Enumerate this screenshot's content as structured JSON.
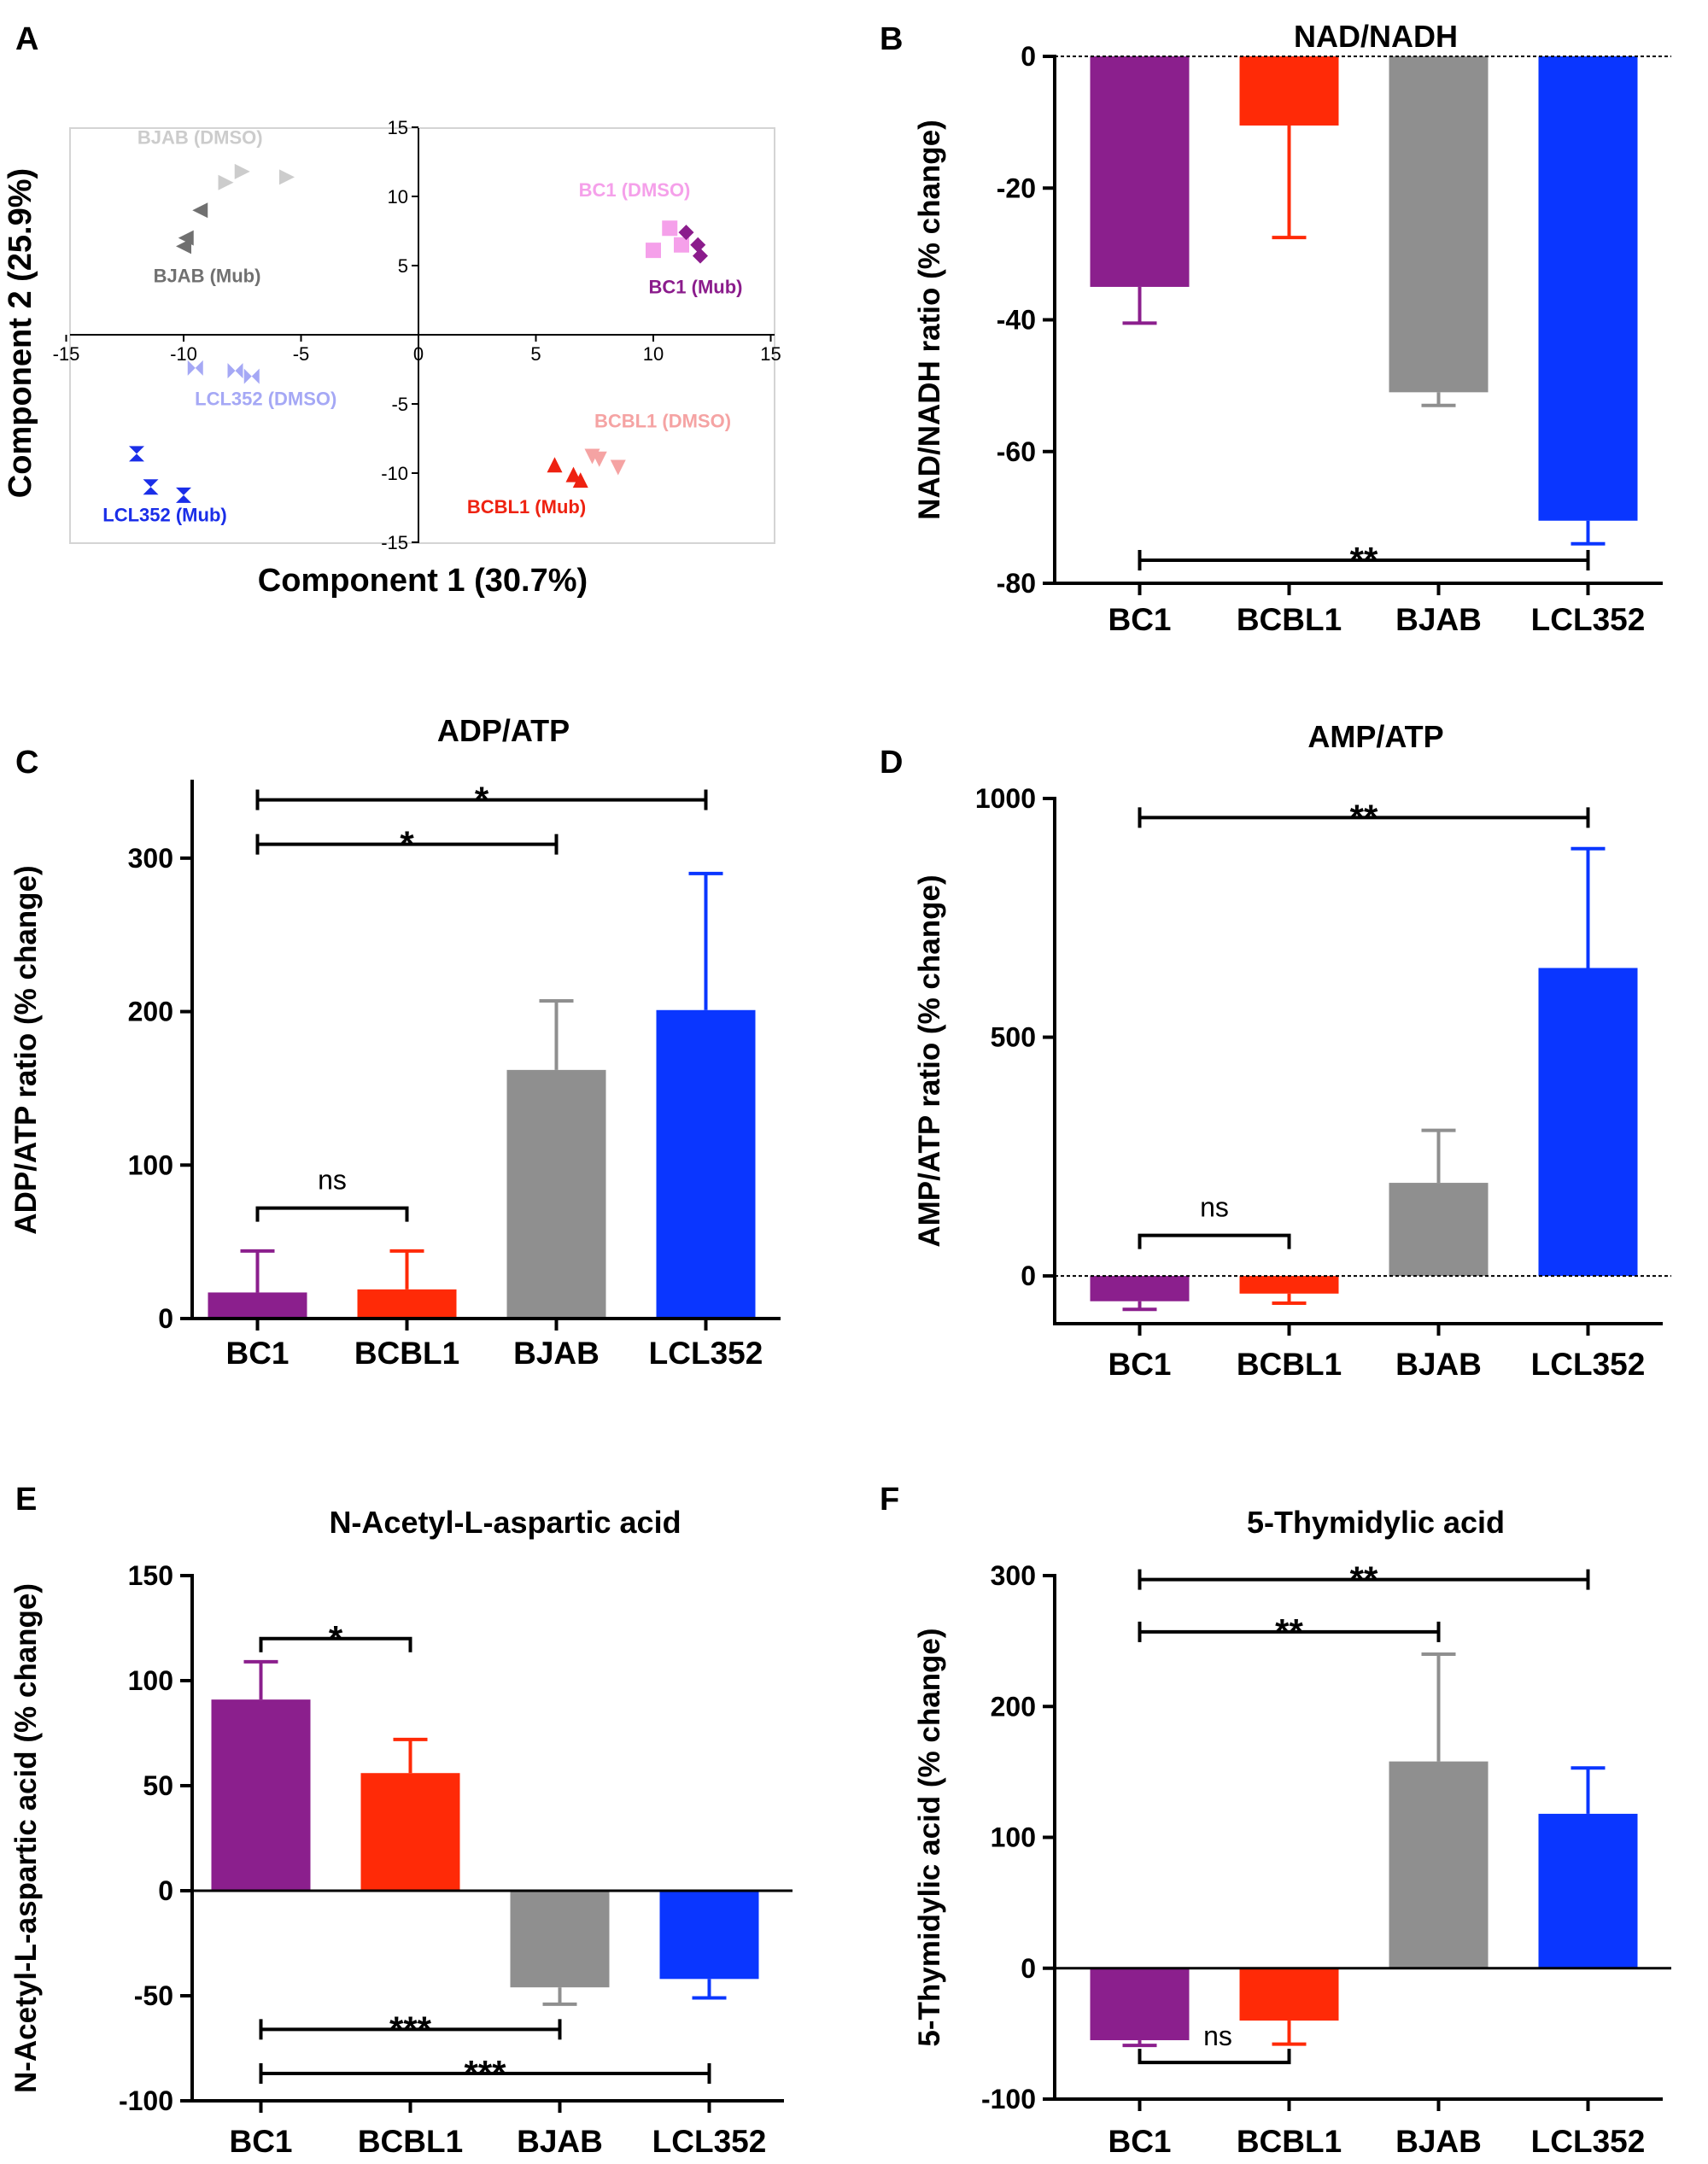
{
  "panels": {
    "A": {
      "letter": "A"
    },
    "B": {
      "letter": "B"
    },
    "C": {
      "letter": "C"
    },
    "D": {
      "letter": "D"
    },
    "E": {
      "letter": "E"
    },
    "F": {
      "letter": "F"
    }
  },
  "chart_data": [
    {
      "id": "A",
      "type": "scatter",
      "title": "",
      "xlabel": "Component 1 (30.7%)",
      "ylabel": "Component 2 (25.9%)",
      "xlim": [
        -15,
        15
      ],
      "ylim": [
        -15,
        15
      ],
      "xticks": [
        -15,
        -10,
        -5,
        0,
        5,
        10,
        15
      ],
      "yticks": [
        -15,
        -10,
        -5,
        0,
        5,
        10,
        15
      ],
      "series": [
        {
          "name": "BJAB (DMSO)",
          "color": "#cccccc",
          "marker": "triangle-right",
          "label_at": [
            -9.3,
            13.8
          ],
          "x": [
            -7.5,
            -8.2,
            -5.6
          ],
          "y": [
            11.8,
            11.0,
            11.4
          ]
        },
        {
          "name": "BJAB (Mub)",
          "color": "#707070",
          "marker": "triangle-left",
          "label_at": [
            -9.0,
            3.8
          ],
          "x": [
            -9.3,
            -9.9,
            -10.0
          ],
          "y": [
            9.0,
            7.0,
            6.4
          ]
        },
        {
          "name": "BC1 (DMSO)",
          "color": "#f5a0ea",
          "marker": "square",
          "label_at": [
            9.2,
            10.0
          ],
          "x": [
            10.7,
            10.0,
            11.2
          ],
          "y": [
            7.7,
            6.1,
            6.5
          ]
        },
        {
          "name": "BC1 (Mub)",
          "color": "#8b1c8c",
          "marker": "diamond",
          "label_at": [
            11.8,
            3.0
          ],
          "x": [
            11.4,
            11.9,
            12.0
          ],
          "y": [
            7.4,
            6.5,
            5.7
          ]
        },
        {
          "name": "LCL352 (DMSO)",
          "color": "#a5a8f5",
          "marker": "bowtie",
          "label_at": [
            -6.5,
            -5.1
          ],
          "x": [
            -9.5,
            -7.8,
            -7.1
          ],
          "y": [
            -2.4,
            -2.6,
            -3.0
          ]
        },
        {
          "name": "LCL352 (Mub)",
          "color": "#1a2ee8",
          "marker": "hourglass",
          "label_at": [
            -10.8,
            -13.5
          ],
          "x": [
            -12.0,
            -11.4,
            -10.0
          ],
          "y": [
            -8.6,
            -11.0,
            -11.6
          ]
        },
        {
          "name": "BCBL1 (DMSO)",
          "color": "#f5a3a3",
          "marker": "triangle-down",
          "label_at": [
            10.4,
            -6.7
          ],
          "x": [
            7.4,
            7.7,
            8.5
          ],
          "y": [
            -8.8,
            -9.0,
            -9.6
          ]
        },
        {
          "name": "BCBL1 (Mub)",
          "color": "#ee2211",
          "marker": "triangle-up",
          "label_at": [
            4.6,
            -12.9
          ],
          "x": [
            5.8,
            6.6,
            6.9
          ],
          "y": [
            -9.4,
            -10.1,
            -10.5
          ]
        }
      ]
    },
    {
      "id": "B",
      "type": "bar",
      "title": "NAD/NADH",
      "ylabel": "NAD/NADH ratio (% change)",
      "categories": [
        "BC1",
        "BCBL1",
        "BJAB",
        "LCL352"
      ],
      "values": [
        -35,
        -10.5,
        -51,
        -70.5
      ],
      "errors": [
        5.5,
        17,
        2,
        3.5
      ],
      "colors": [
        "#8b1f8d",
        "#ff2a07",
        "#8f8f8f",
        "#0a36ff"
      ],
      "ylim": [
        -80,
        0
      ],
      "yticks": [
        0,
        -20,
        -40,
        -60,
        -80
      ],
      "zero_line": "dashed",
      "annotations": [
        {
          "from": 0,
          "to": 3,
          "label": "**",
          "y": -76.5
        }
      ]
    },
    {
      "id": "C",
      "type": "bar",
      "title": "ADP/ATP",
      "ylabel": "ADP/ATP ratio (% change)",
      "categories": [
        "BC1",
        "BCBL1",
        "BJAB",
        "LCL352"
      ],
      "values": [
        17,
        19,
        162,
        201
      ],
      "errors": [
        27,
        25,
        45,
        89
      ],
      "colors": [
        "#8b1f8d",
        "#ff2a07",
        "#8f8f8f",
        "#0a36ff"
      ],
      "ylim": [
        0,
        350
      ],
      "yticks": [
        0,
        100,
        200,
        300
      ],
      "zero_line": "none",
      "annotations": [
        {
          "from": 0,
          "to": 1,
          "label": "ns",
          "y": 72,
          "style": "down"
        },
        {
          "from": 0,
          "to": 2,
          "label": "*",
          "y": 309
        },
        {
          "from": 0,
          "to": 3,
          "label": "*",
          "y": 338
        }
      ]
    },
    {
      "id": "D",
      "type": "bar",
      "title": "AMP/ATP",
      "ylabel": "AMP/ATP ratio (% change)",
      "categories": [
        "BC1",
        "BCBL1",
        "BJAB",
        "LCL352"
      ],
      "values": [
        -53,
        -37,
        195,
        645
      ],
      "errors": [
        17,
        20,
        110,
        250
      ],
      "colors": [
        "#8b1f8d",
        "#ff2a07",
        "#8f8f8f",
        "#0a36ff"
      ],
      "ylim": [
        -100,
        1000
      ],
      "yticks": [
        0,
        500,
        1000
      ],
      "zero_line": "dashed",
      "annotations": [
        {
          "from": 0,
          "to": 1,
          "label": "ns",
          "y": 85,
          "style": "down"
        },
        {
          "from": 0,
          "to": 3,
          "label": "**",
          "y": 960
        }
      ]
    },
    {
      "id": "E",
      "type": "bar",
      "title": "N-Acetyl-L-aspartic acid",
      "ylabel": "N-Acetyl-L-aspartic acid (% change)",
      "categories": [
        "BC1",
        "BCBL1",
        "BJAB",
        "LCL352"
      ],
      "values": [
        91,
        56,
        -46,
        -42
      ],
      "errors": [
        18,
        16,
        8,
        9
      ],
      "colors": [
        "#8b1f8d",
        "#ff2a07",
        "#8f8f8f",
        "#0a36ff"
      ],
      "ylim": [
        -100,
        150
      ],
      "yticks": [
        150,
        100,
        50,
        0,
        -50,
        -100
      ],
      "zero_line": "solid",
      "annotations": [
        {
          "from": 0,
          "to": 1,
          "label": "*",
          "y": 120,
          "style": "down"
        },
        {
          "from": 0,
          "to": 2,
          "label": "***",
          "y": -66
        },
        {
          "from": 0,
          "to": 3,
          "label": "***",
          "y": -87
        }
      ]
    },
    {
      "id": "F",
      "type": "bar",
      "title": "5-Thymidylic acid",
      "ylabel": "5-Thymidylic acid (% change)",
      "categories": [
        "BC1",
        "BCBL1",
        "BJAB",
        "LCL352"
      ],
      "values": [
        -55,
        -40,
        158,
        118
      ],
      "errors": [
        4,
        18,
        82,
        35
      ],
      "colors": [
        "#8b1f8d",
        "#ff2a07",
        "#8f8f8f",
        "#0a36ff"
      ],
      "ylim": [
        -100,
        300
      ],
      "yticks": [
        300,
        200,
        100,
        0,
        -100
      ],
      "zero_line": "solid",
      "annotations": [
        {
          "from": 0,
          "to": 1,
          "label": "ns",
          "y": -72,
          "style": "up"
        },
        {
          "from": 0,
          "to": 2,
          "label": "**",
          "y": 257
        },
        {
          "from": 0,
          "to": 3,
          "label": "**",
          "y": 297
        }
      ]
    }
  ]
}
